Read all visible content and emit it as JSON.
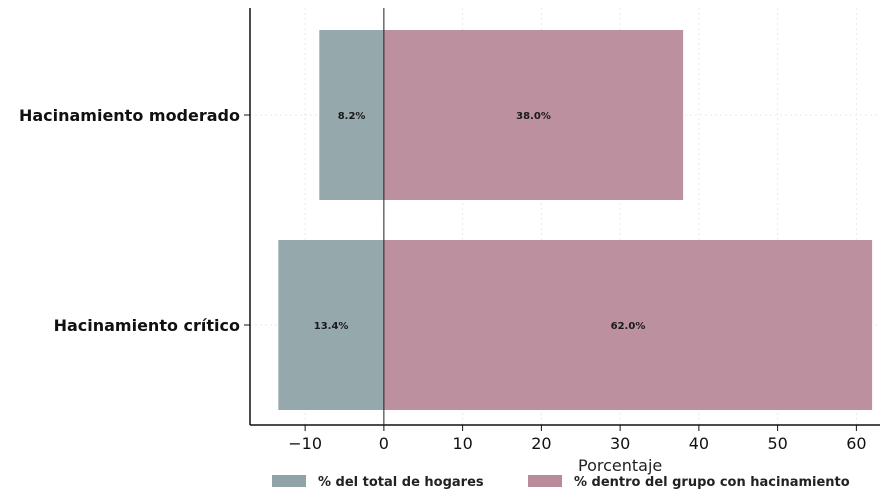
{
  "chart_data": {
    "type": "bar",
    "orientation": "horizontal",
    "categories": [
      "Hacinamiento moderado",
      "Hacinamiento crítico"
    ],
    "series": [
      {
        "name": "% del total de hogares",
        "values": [
          -8.2,
          -13.4
        ],
        "labels": [
          "8.2%",
          "13.4%"
        ],
        "color": "#8fa3a8"
      },
      {
        "name": "% dentro del grupo con hacinamiento",
        "values": [
          38.0,
          62.0
        ],
        "labels": [
          "38.0%",
          "62.0%"
        ],
        "color": "#b88a9a"
      }
    ],
    "xlabel": "Porcentaje",
    "ylabel": "",
    "title": "",
    "xlim": [
      -17,
      63
    ],
    "xticks": [
      -10,
      0,
      10,
      20,
      30,
      40,
      50,
      60
    ],
    "xtick_labels": [
      "−10",
      "0",
      "10",
      "20",
      "30",
      "40",
      "50",
      "60"
    ],
    "grid": true,
    "legend_position": "bottom"
  }
}
